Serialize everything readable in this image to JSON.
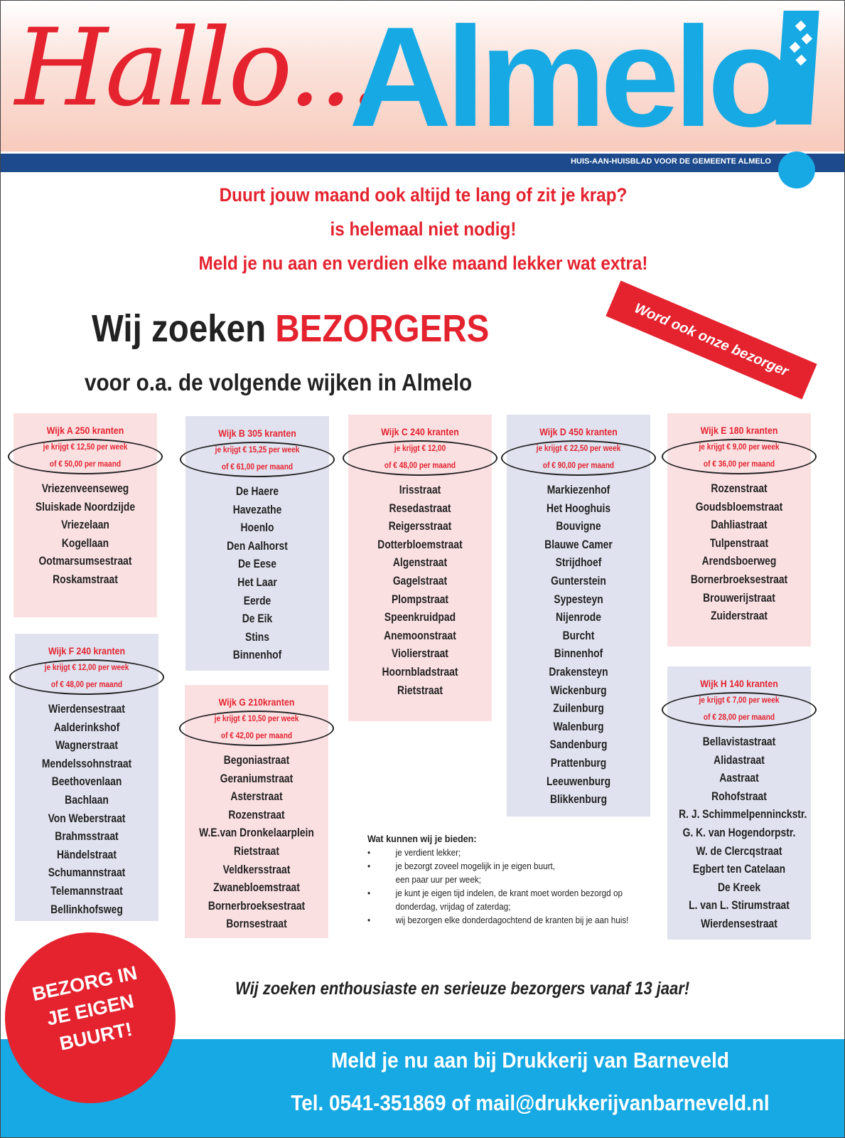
{
  "header": {
    "hallo": "Hallo...",
    "almelo": "Almelo",
    "tagline": "HUIS-AAN-HUISBLAD VOOR DE GEMEENTE ALMELO"
  },
  "intro": [
    "Duurt jouw maand ook altijd te lang of zit je krap?",
    "is helemaal niet nodig!",
    "Meld je nu aan en verdien elke maand lekker wat extra!"
  ],
  "headline": {
    "a": "Wij zoeken ",
    "b": "BEZORGERS",
    "sub": "voor o.a. de volgende wijken in Almelo"
  },
  "ribbon": "Word ook onze bezorger",
  "colors": {
    "red": "#e4232f",
    "blue": "#16a9e3",
    "navy": "#1c4a8c",
    "pink_box": "#fbe0e2",
    "blue_box": "#e0e2ef"
  },
  "wijken": [
    {
      "title": "Wijk A 250 kranten",
      "pay1": "je krijgt € 12,50 per week",
      "pay2": "of € 50,00  per maand",
      "color": "pink",
      "streets": [
        "Vriezenveenseweg",
        "Sluiskade Noordzijde",
        "Vriezelaan",
        "Kogellaan",
        "Ootmarsumsestraat",
        "Roskamstraat"
      ]
    },
    {
      "title": "Wijk B 305 kranten",
      "pay1": "je krijgt € 15,25 per week",
      "pay2": "of  € 61,00 per maand",
      "color": "blue",
      "streets": [
        "De Haere",
        "Havezathe",
        "Hoenlo",
        "Den Aalhorst",
        "De Eese",
        "Het Laar",
        "Eerde",
        "De Eik",
        "Stins",
        "Binnenhof"
      ]
    },
    {
      "title": "Wijk C 240 kranten",
      "pay1": "je krijgt € 12,00",
      "pay2": "of € 48,00 per maand",
      "color": "pink",
      "streets": [
        "Irisstraat",
        "Resedastraat",
        "Reigersstraat",
        "Dotterbloemstraat",
        "Algenstraat",
        "Gagelstraat",
        "Plompstraat",
        "Speenkruidpad",
        "Anemoonstraat",
        "Violierstraat",
        "Hoornbladstraat",
        "Rietstraat"
      ]
    },
    {
      "title": "Wijk D 450 kranten",
      "pay1": "je krijgt € 22,50 per week",
      "pay2": "of € 90,00 per maand",
      "color": "blue",
      "streets": [
        "Markiezenhof",
        "Het Hooghuis",
        "Bouvigne",
        "Blauwe Camer",
        "Strijdhoef",
        "Gunterstein",
        "Sypesteyn",
        "Nijenrode",
        "Burcht",
        "Binnenhof",
        "Drakensteyn",
        "Wickenburg",
        "Zuilenburg",
        "Walenburg",
        "Sandenburg",
        "Prattenburg",
        "Leeuwenburg",
        "Blikkenburg"
      ]
    },
    {
      "title": "Wijk E 180 kranten",
      "pay1": "je krijgt € 9,00 per week",
      "pay2": "of € 36,00 per maand",
      "color": "pink",
      "streets": [
        "Rozenstraat",
        "Goudsbloemstraat",
        "Dahliastraat",
        "Tulpenstraat",
        "Arendsboerweg",
        "Bornerbroeksestraat",
        "Brouwerijstraat",
        "Zuiderstraat"
      ]
    },
    {
      "title": "Wijk F 240 kranten",
      "pay1": "je krijgt € 12,00 per week",
      "pay2": "of € 48,00 per maand",
      "color": "blue",
      "streets": [
        "Wierdensestraat",
        "Aalderinkshof",
        "Wagnerstraat",
        "Mendelssohnstraat",
        "Beethovenlaan",
        "Bachlaan",
        "Von Weberstraat",
        "Brahmsstraat",
        "Händelstraat",
        "Schumannstraat",
        "Telemannstraat",
        "Bellinkhofsweg"
      ]
    },
    {
      "title": "Wijk G 210kranten",
      "pay1": "je krijgt € 10,50 per week",
      "pay2": "of € 42,00 per maand",
      "color": "pink",
      "streets": [
        "Begoniastraat",
        "Geraniumstraat",
        "Asterstraat",
        "Rozenstraat",
        "W.E.van Dronkelaarplein",
        "Rietstraat",
        "Veldkersstraat",
        "Zwanebloemstraat",
        "Bornerbroeksestraat",
        "Bornsestraat"
      ]
    },
    {
      "title": "Wijk H 140 kranten",
      "pay1": "je krijgt € 7,00 per week",
      "pay2": "of € 28,00  per maand",
      "color": "blue",
      "streets": [
        "Bellavistastraat",
        "Alidastraat",
        "Aastraat",
        "Rohofstraat",
        "R. J. Schimmelpenninckstr.",
        "G. K. van Hogendorpstr.",
        "W. de Clercqstraat",
        "Egbert ten Catelaan",
        "De Kreek",
        "L. van L. Stirumstraat",
        "Wierdensestraat"
      ]
    }
  ],
  "offer": {
    "title": "Wat kunnen wij je bieden:",
    "bullet": "•",
    "items": [
      [
        "je verdient lekker;"
      ],
      [
        "je bezorgt zoveel mogelijk in je eigen buurt,",
        "een paar uur per week;"
      ],
      [
        "je kunt je eigen tijd indelen, de krant moet worden bezorgd op",
        "donderdag, vrijdag of zaterdag;"
      ],
      [
        "wij bezorgen elke donderdagochtend de kranten bij je aan huis!"
      ]
    ]
  },
  "enthusiast": "Wij zoeken enthousiaste en serieuze bezorgers vanaf 13 jaar!",
  "circle": [
    "BEZORG IN",
    "JE EIGEN",
    "BUURT!"
  ],
  "footer": {
    "line1": "Meld je nu aan bij Drukkerij van Barneveld",
    "line2": "Tel. 0541-351869 of mail@drukkerijvanbarneveld.nl"
  }
}
